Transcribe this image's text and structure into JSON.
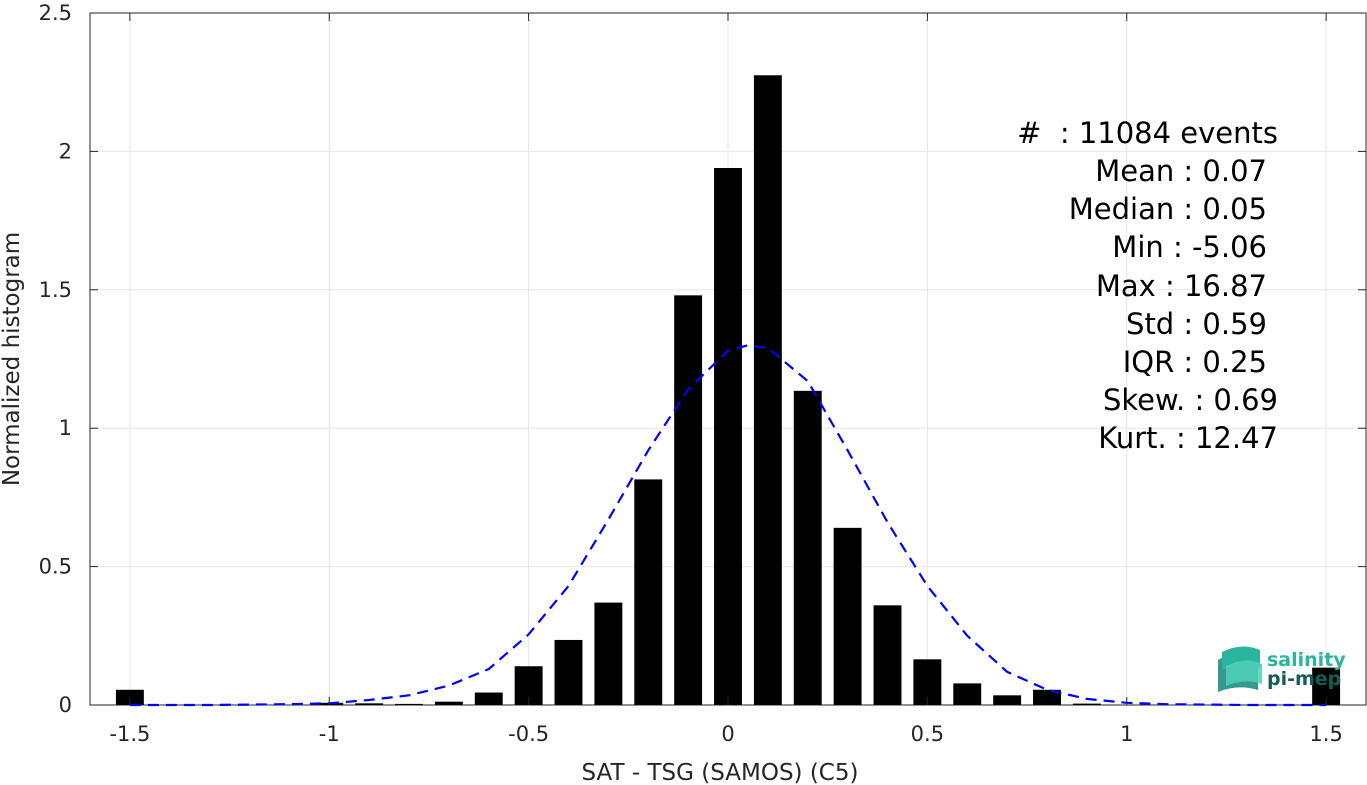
{
  "chart_data": {
    "type": "bar",
    "xlabel": "SAT - TSG (SAMOS) (C5)",
    "ylabel": "Normalized histogram",
    "xlim": [
      -1.6,
      1.6
    ],
    "ylim": [
      0,
      2.5
    ],
    "grid": true,
    "bar_width": 0.07,
    "x_ticks": [
      {
        "v": -1.5,
        "label": "-1.5"
      },
      {
        "v": -1,
        "label": "-1"
      },
      {
        "v": -0.5,
        "label": "-0.5"
      },
      {
        "v": 0,
        "label": "0"
      },
      {
        "v": 0.5,
        "label": "0.5"
      },
      {
        "v": 1,
        "label": "1"
      },
      {
        "v": 1.5,
        "label": "1.5"
      }
    ],
    "y_ticks": [
      {
        "v": 0,
        "label": "0"
      },
      {
        "v": 0.5,
        "label": "0.5"
      },
      {
        "v": 1,
        "label": "1"
      },
      {
        "v": 1.5,
        "label": "1.5"
      },
      {
        "v": 2,
        "label": "2"
      },
      {
        "v": 2.5,
        "label": "2.5"
      }
    ],
    "bars": {
      "x": [
        -1.5,
        -1.0,
        -0.9,
        -0.8,
        -0.7,
        -0.6,
        -0.5,
        -0.4,
        -0.3,
        -0.2,
        -0.1,
        0.0,
        0.1,
        0.2,
        0.3,
        0.4,
        0.5,
        0.6,
        0.7,
        0.8,
        0.9,
        1.5
      ],
      "values": [
        0.055,
        0.008,
        0.006,
        0.004,
        0.012,
        0.045,
        0.14,
        0.235,
        0.37,
        0.815,
        1.48,
        1.94,
        2.275,
        1.135,
        0.64,
        0.36,
        0.165,
        0.078,
        0.035,
        0.055,
        0.005,
        0.135
      ],
      "color": "#000000"
    },
    "fit_curve": {
      "style": "dashed",
      "color": "#0000ff",
      "x": [
        -1.5,
        -1.3,
        -1.1,
        -1.0,
        -0.9,
        -0.8,
        -0.7,
        -0.6,
        -0.5,
        -0.4,
        -0.3,
        -0.2,
        -0.1,
        0.0,
        0.05,
        0.1,
        0.2,
        0.3,
        0.4,
        0.5,
        0.6,
        0.7,
        0.8,
        0.9,
        1.0,
        1.1,
        1.3,
        1.5
      ],
      "y": [
        0.0,
        0.0,
        0.003,
        0.006,
        0.018,
        0.035,
        0.07,
        0.13,
        0.255,
        0.43,
        0.67,
        0.92,
        1.14,
        1.28,
        1.3,
        1.29,
        1.17,
        0.92,
        0.66,
        0.43,
        0.25,
        0.12,
        0.055,
        0.022,
        0.008,
        0.003,
        0.0,
        0.0
      ]
    },
    "annotations": [
      "#  : 11084 events",
      "Mean : 0.07",
      "Median : 0.05",
      "Min : -5.06",
      "Max : 16.87",
      "Std : 0.59",
      "IQR : 0.25",
      "Skew. : 0.69",
      "Kurt. : 12.47"
    ]
  },
  "logo": {
    "line1": "salinity",
    "line2": "pi-mep"
  },
  "colors": {
    "grid": "#e6e6e6",
    "axis": "#262626",
    "bar": "#000000",
    "fit": "#0000ff",
    "logo_text": "#2bb59f",
    "logo_dark": "#155e57"
  }
}
